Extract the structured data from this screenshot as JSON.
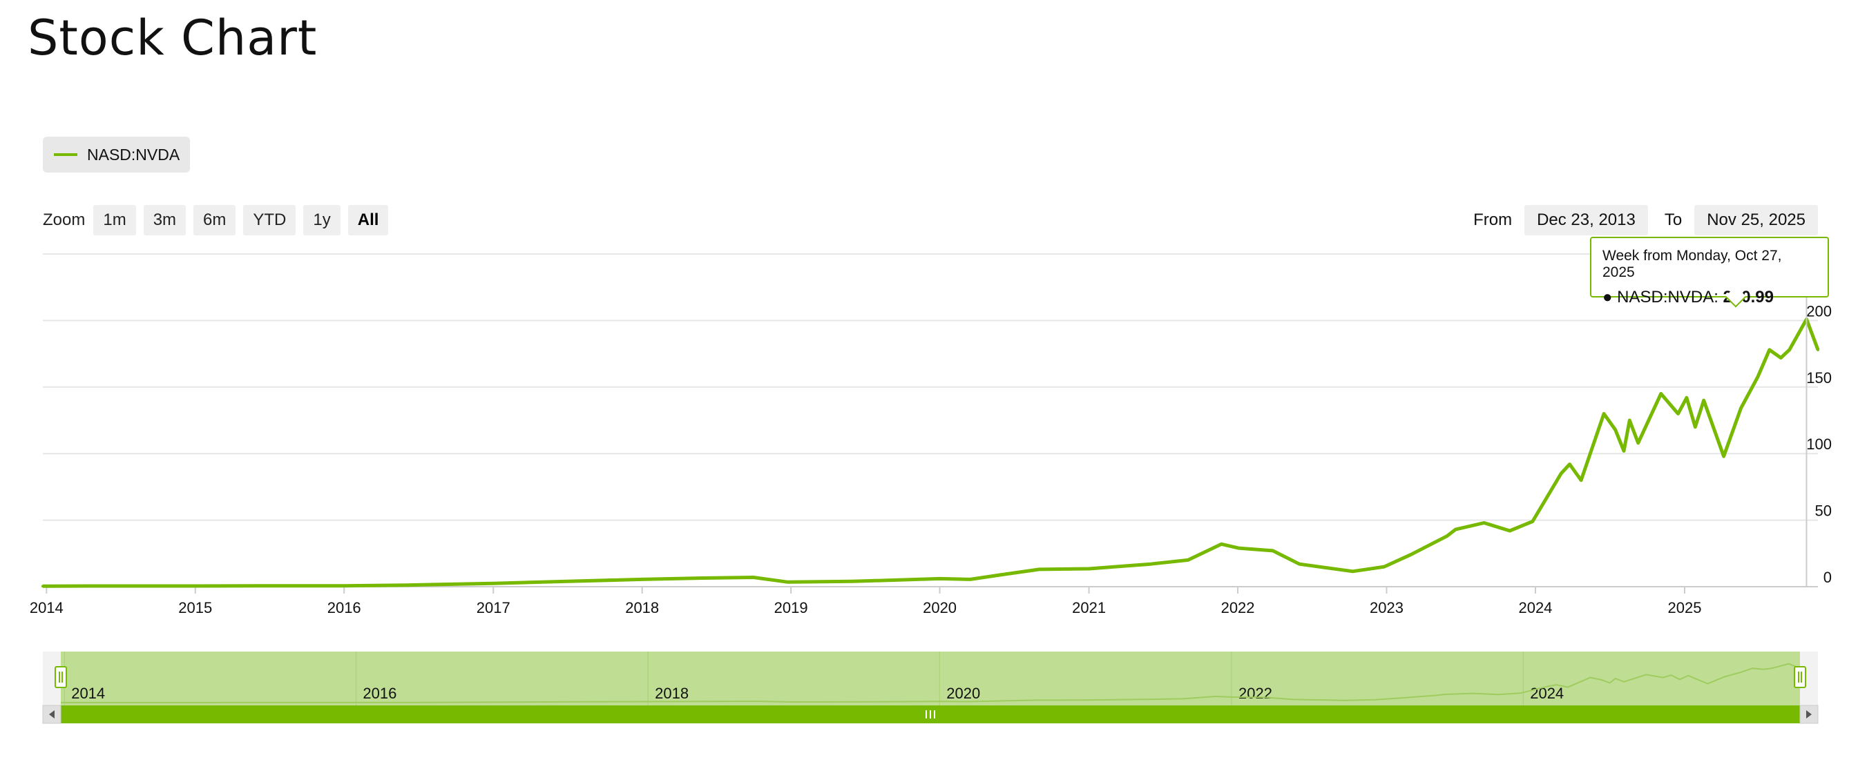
{
  "title": "Stock Chart",
  "legend": {
    "series_name": "NASD:NVDA"
  },
  "zoom": {
    "label": "Zoom",
    "buttons": [
      "1m",
      "3m",
      "6m",
      "YTD",
      "1y",
      "All"
    ],
    "selected": "All"
  },
  "range": {
    "from_label": "From",
    "from_value": "Dec 23, 2013",
    "to_label": "To",
    "to_value": "Nov 25, 2025"
  },
  "tooltip": {
    "header": "Week from Monday, Oct 27, 2025",
    "series": "NASD:NVDA",
    "value": "200.99"
  },
  "navigator": {
    "labels": [
      "2014",
      "2016",
      "2018",
      "2020",
      "2022",
      "2024"
    ]
  },
  "colors": {
    "series": "#76b900",
    "navigator_fill": "#bfde94",
    "grid": "#e6e6e6"
  },
  "chart_data": {
    "type": "line",
    "title": "",
    "xlabel": "",
    "ylabel": "",
    "ylim": [
      0,
      250
    ],
    "yticks": [
      0,
      50,
      100,
      150,
      200
    ],
    "xticks": [
      "2014",
      "2015",
      "2016",
      "2017",
      "2018",
      "2019",
      "2020",
      "2021",
      "2022",
      "2023",
      "2024",
      "2025"
    ],
    "grid": true,
    "legend": "top-left",
    "series": [
      {
        "name": "NASD:NVDA",
        "x": [
          "2013-12-23",
          "2014-06-01",
          "2015-01-01",
          "2015-06-01",
          "2016-01-01",
          "2016-06-01",
          "2017-01-01",
          "2017-06-01",
          "2018-01-01",
          "2018-06-01",
          "2018-10-01",
          "2018-12-24",
          "2019-06-01",
          "2020-01-01",
          "2020-03-16",
          "2020-06-01",
          "2020-09-01",
          "2021-01-01",
          "2021-06-01",
          "2021-09-01",
          "2021-11-22",
          "2022-01-03",
          "2022-03-28",
          "2022-06-01",
          "2022-10-10",
          "2022-12-26",
          "2023-03-01",
          "2023-05-29",
          "2023-06-19",
          "2023-08-28",
          "2023-10-30",
          "2023-12-25",
          "2024-03-04",
          "2024-03-25",
          "2024-04-22",
          "2024-06-17",
          "2024-07-15",
          "2024-08-05",
          "2024-08-19",
          "2024-09-09",
          "2024-11-04",
          "2024-12-16",
          "2025-01-06",
          "2025-01-27",
          "2025-02-17",
          "2025-04-07",
          "2025-05-19",
          "2025-06-30",
          "2025-07-28",
          "2025-08-25",
          "2025-09-15",
          "2025-10-27",
          "2025-11-24"
        ],
        "values": [
          0.4,
          0.5,
          0.5,
          0.6,
          0.7,
          1.2,
          2.5,
          3.8,
          5.5,
          6.5,
          7.0,
          3.5,
          4.0,
          6.0,
          5.5,
          9.0,
          13.0,
          13.5,
          17.0,
          20.0,
          32.0,
          29.0,
          27.0,
          17.0,
          11.5,
          15.0,
          24.0,
          38.0,
          43.0,
          48.0,
          42.0,
          49.0,
          85.0,
          92.0,
          80.0,
          130.0,
          118.0,
          102.0,
          125.0,
          108.0,
          145.0,
          130.0,
          142.0,
          120.0,
          140.0,
          98.0,
          134.0,
          158.0,
          178.0,
          172.0,
          178.0,
          200.99,
          178.0
        ]
      }
    ]
  }
}
